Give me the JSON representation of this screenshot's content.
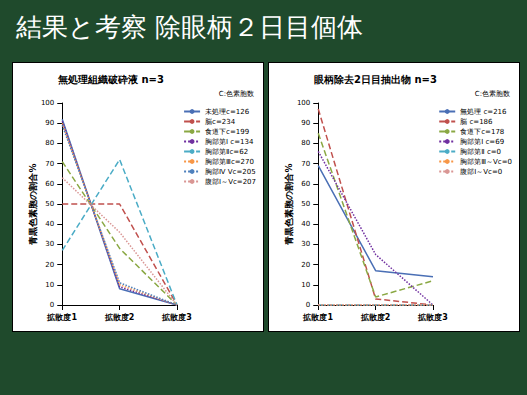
{
  "slide_title": "結果と考察 除眼柄２日目個体",
  "chart_data": [
    {
      "type": "line",
      "title": "無処理組織破砕液 n=3",
      "subtitle": "C:色素胞数",
      "y_label": "青黒色素胞の割合%",
      "categories": [
        "拡散度1",
        "拡散度2",
        "拡散度3"
      ],
      "ylim": [
        0,
        100
      ],
      "yticks": [
        0,
        10,
        20,
        30,
        40,
        50,
        60,
        70,
        80,
        90,
        100
      ],
      "grid": false,
      "legend": "right",
      "series": [
        {
          "name": "未処理c=126",
          "color": "#4a6fb5",
          "line_style": "solid",
          "values": [
            92,
            8,
            0
          ]
        },
        {
          "name": "脳c=234",
          "color": "#c0504d",
          "line_style": "dashed",
          "values": [
            50,
            50,
            0
          ]
        },
        {
          "name": "食道下c=199",
          "color": "#8aa843",
          "line_style": "dashed",
          "values": [
            71,
            28,
            0
          ]
        },
        {
          "name": "胸部第Ⅰ c=134",
          "color": "#7030a0",
          "line_style": "dotted",
          "values": [
            91,
            9,
            0
          ]
        },
        {
          "name": "胸部第Ⅱc=62",
          "color": "#4bacc6",
          "line_style": "dashed",
          "values": [
            27,
            72,
            0
          ]
        },
        {
          "name": "胸部第Ⅲc=270",
          "color": "#f79646",
          "line_style": "dotted",
          "values": [
            90,
            10,
            0
          ]
        },
        {
          "name": "胸部Ⅳ Ⅴc=205",
          "color": "#4f81bd",
          "line_style": "dotted",
          "values": [
            89,
            11,
            0
          ]
        },
        {
          "name": "腹部Ⅰ～Ⅴc=207",
          "color": "#d99694",
          "line_style": "dotted",
          "values": [
            63,
            36,
            0
          ]
        }
      ]
    },
    {
      "type": "line",
      "title": "眼柄除去2日目抽出物 n=3",
      "subtitle": "C:色素胞数",
      "y_label": "青黒色素胞の割合%",
      "categories": [
        "拡散度1",
        "拡散度2",
        "拡散度3"
      ],
      "ylim": [
        0,
        100
      ],
      "yticks": [
        0,
        10,
        20,
        30,
        40,
        50,
        60,
        70,
        80,
        90,
        100
      ],
      "grid": false,
      "legend": "right",
      "series": [
        {
          "name": "無処理 c=216",
          "color": "#4a6fb5",
          "line_style": "solid",
          "values": [
            69,
            17,
            14
          ]
        },
        {
          "name": "脳 c=186",
          "color": "#c0504d",
          "line_style": "dashed",
          "values": [
            97,
            3,
            0
          ]
        },
        {
          "name": "食道下c=178",
          "color": "#8aa843",
          "line_style": "dashed",
          "values": [
            85,
            4,
            12
          ]
        },
        {
          "name": "胸部第Ⅰ c=69",
          "color": "#7030a0",
          "line_style": "dotted",
          "values": [
            76,
            25,
            0
          ]
        },
        {
          "name": "胸部第Ⅱ c=0",
          "color": "#4bacc6",
          "line_style": "dashed",
          "values": [
            0,
            0,
            0
          ]
        },
        {
          "name": "胸部第Ⅲ～Ⅴc=0",
          "color": "#f79646",
          "line_style": "dotted",
          "values": [
            0,
            0,
            0
          ]
        },
        {
          "name": "腹部Ⅰ～Ⅴc=0",
          "color": "#d99694",
          "line_style": "dotted",
          "values": [
            0,
            0,
            0
          ]
        }
      ]
    }
  ]
}
